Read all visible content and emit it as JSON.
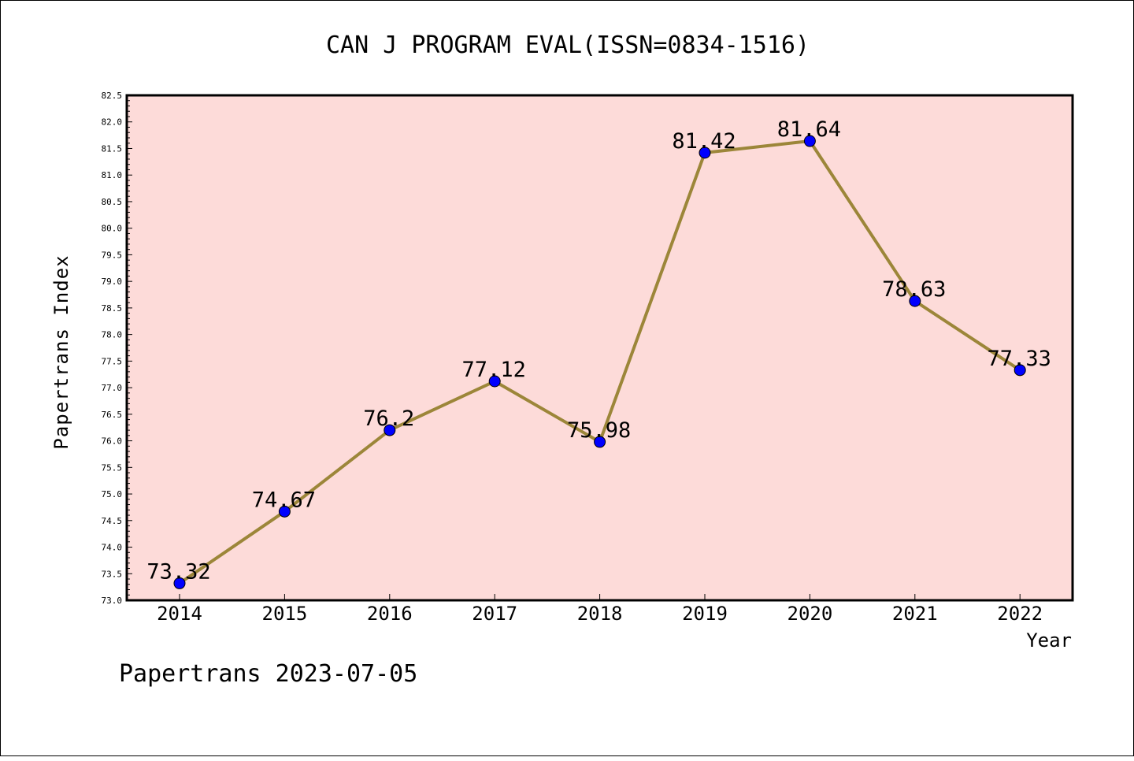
{
  "chart_data": {
    "type": "line",
    "title": "CAN J PROGRAM EVAL(ISSN=0834-1516)",
    "xlabel": "Year",
    "ylabel": "Papertrans Index",
    "categories": [
      "2014",
      "2015",
      "2016",
      "2017",
      "2018",
      "2019",
      "2020",
      "2021",
      "2022"
    ],
    "values": [
      73.32,
      74.67,
      76.2,
      77.12,
      75.98,
      81.42,
      81.64,
      78.63,
      77.33
    ],
    "data_labels": [
      "73.32",
      "74.67",
      "76.2",
      "77.12",
      "75.98",
      "81.42",
      "81.64",
      "78.63",
      "77.33"
    ],
    "ylim": [
      73.0,
      82.5
    ],
    "yticks": [
      "73.0",
      "73.5",
      "74.0",
      "74.5",
      "75.0",
      "75.5",
      "76.0",
      "76.5",
      "77.0",
      "77.5",
      "78.0",
      "78.5",
      "79.0",
      "79.5",
      "80.0",
      "80.5",
      "81.0",
      "81.5",
      "82.0",
      "82.5"
    ],
    "grid": false,
    "line_color": "#9c8639",
    "marker_color": "#0000ff",
    "plot_background": "#fddbd9"
  },
  "footer": "Papertrans 2023-07-05"
}
